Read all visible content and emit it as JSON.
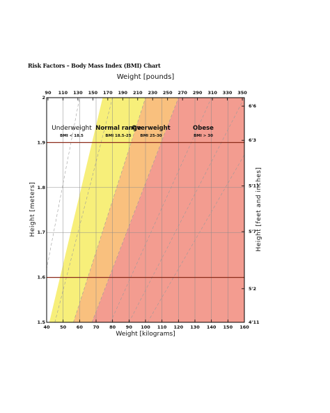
{
  "page_title": "Risk Factors – Body Mass Index (BMI) Chart",
  "chart_data": {
    "type": "area",
    "title": "",
    "top_axis_label": "Weight [pounds]",
    "bottom_axis_label": "Weight [kilograms]",
    "left_axis_label": "Height [meters]",
    "right_axis_label": "Height [feet and inches]",
    "x_kg_range": [
      40,
      160
    ],
    "y_m_range": [
      1.5,
      2.0
    ],
    "kg_ticks": [
      "40",
      "50",
      "60",
      "70",
      "80",
      "90",
      "100",
      "110",
      "120",
      "130",
      "140",
      "150",
      "160"
    ],
    "lb_ticks": [
      "90",
      "110",
      "130",
      "150",
      "170",
      "190",
      "210",
      "230",
      "250",
      "270",
      "290",
      "310",
      "330",
      "350"
    ],
    "m_ticks": [
      "1.5",
      "1.6",
      "1.7",
      "1.8",
      "1.9",
      "2"
    ],
    "ftin_ticks": [
      "4'11",
      "5'2",
      "5'7",
      "5'11",
      "6'3",
      "6'6"
    ],
    "grid": true,
    "bmi_guide_lines": [
      15,
      20,
      25,
      30,
      35,
      40,
      45
    ],
    "categories": [
      {
        "name": "Underweight",
        "range": "BMI < 18.5",
        "bmi_min": 0,
        "bmi_max": 18.5,
        "color": "#ffffff"
      },
      {
        "name": "Normal range",
        "range": "BMI 18.5-25",
        "bmi_min": 18.5,
        "bmi_max": 25,
        "color": "#f7ef7a"
      },
      {
        "name": "Overweight",
        "range": "BMI 25-30",
        "bmi_min": 25,
        "bmi_max": 30,
        "color": "#f9c07e"
      },
      {
        "name": "Obese",
        "range": "BMI > 30",
        "bmi_min": 30,
        "bmi_max": 100,
        "color": "#f39c90"
      }
    ],
    "colors": {
      "frame": "#000000",
      "grid": "#8a8a8a",
      "guide": "#9a9a9a",
      "height_rule": "#8b2b1a"
    }
  }
}
